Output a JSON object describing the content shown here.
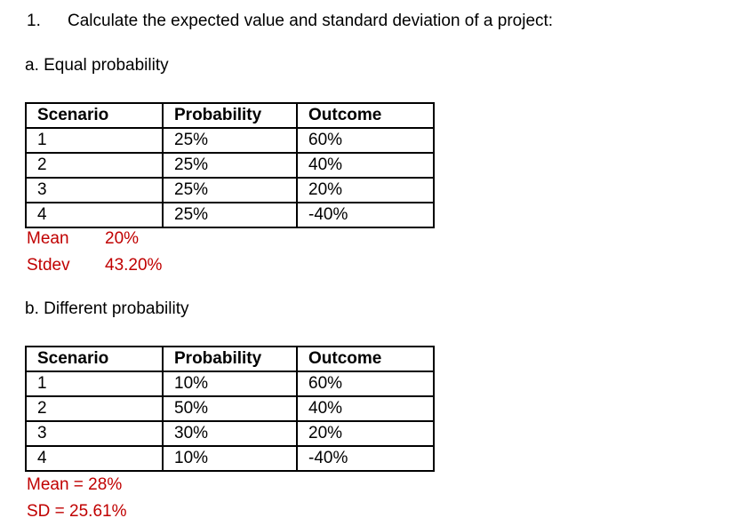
{
  "document": {
    "question_number": "1.",
    "question_text": "Calculate the expected value and standard deviation of a project:",
    "section_a": {
      "heading": "a. Equal probability",
      "table": {
        "headers": [
          "Scenario",
          "Probability",
          "Outcome"
        ],
        "rows": [
          [
            "1",
            "25%",
            "60%"
          ],
          [
            "2",
            "25%",
            "40%"
          ],
          [
            "3",
            "25%",
            "20%"
          ],
          [
            "4",
            "25%",
            "-40%"
          ]
        ]
      },
      "stats": [
        {
          "label": "Mean",
          "value": "20%"
        },
        {
          "label": "Stdev",
          "value": "43.20%"
        }
      ]
    },
    "section_b": {
      "heading": "b. Different probability",
      "table": {
        "headers": [
          "Scenario",
          "Probability",
          "Outcome"
        ],
        "rows": [
          [
            "1",
            "10%",
            "60%"
          ],
          [
            "2",
            "50%",
            "40%"
          ],
          [
            "3",
            "30%",
            "20%"
          ],
          [
            "4",
            "10%",
            "-40%"
          ]
        ]
      },
      "stats_lines": [
        "Mean = 28%",
        "SD = 25.61%"
      ]
    },
    "colors": {
      "stat_text": "#C00000",
      "body_text": "#000000",
      "table_border": "#000000"
    }
  }
}
